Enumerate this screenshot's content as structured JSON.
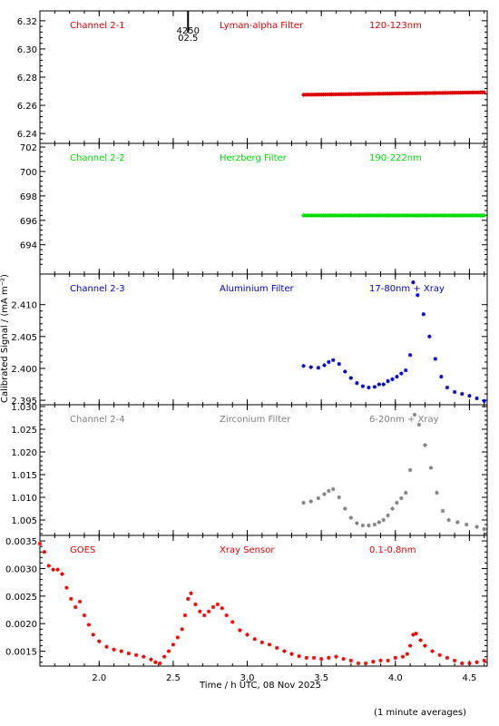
{
  "footer_note": "(1 minute averages)",
  "chart_data": [
    {
      "type": "scatter",
      "panel": "Channel 2-1",
      "labels": [
        "Channel 2-1",
        "Lyman-alpha Filter",
        "120-123nm"
      ],
      "color": "#dd0000",
      "ylim": [
        6.233,
        6.327
      ],
      "yticks": [
        "6.24",
        "6.26",
        "6.28",
        "6.30",
        "6.32"
      ],
      "ytick_values": [
        6.24,
        6.26,
        6.28,
        6.3,
        6.32
      ],
      "marker_label": [
        "4250",
        "02.5"
      ],
      "marker_x": 2.6,
      "series_x": [
        3.38,
        4.6
      ],
      "series_y": [
        6.2675,
        6.2692
      ]
    },
    {
      "type": "scatter",
      "panel": "Channel 2-2",
      "labels": [
        "Channel 2-2",
        "Herzberg Filter",
        "190-222nm"
      ],
      "color": "#00dd00",
      "ylim": [
        691.6,
        702.3
      ],
      "yticks": [
        "694",
        "696",
        "698",
        "700",
        "702"
      ],
      "ytick_values": [
        694,
        696,
        698,
        700,
        702
      ],
      "series_x": [
        3.38,
        4.6
      ],
      "series_y": [
        696.4,
        696.4
      ]
    },
    {
      "type": "scatter",
      "panel": "Channel 2-3",
      "labels": [
        "Channel 2-3",
        "Aluminium Filter",
        "17-80nm + Xray"
      ],
      "color": "#0000cc",
      "ylim": [
        2.3943,
        2.4148
      ],
      "yticks": [
        "2.395",
        "2.400",
        "2.405",
        "2.410"
      ],
      "ytick_values": [
        2.395,
        2.4,
        2.405,
        2.41
      ],
      "points": [
        [
          3.38,
          2.4004
        ],
        [
          3.43,
          2.4002
        ],
        [
          3.48,
          2.4001
        ],
        [
          3.52,
          2.4005
        ],
        [
          3.55,
          2.401
        ],
        [
          3.58,
          2.4013
        ],
        [
          3.62,
          2.4007
        ],
        [
          3.66,
          2.3995
        ],
        [
          3.7,
          2.3985
        ],
        [
          3.74,
          2.3977
        ],
        [
          3.78,
          2.3972
        ],
        [
          3.82,
          2.397
        ],
        [
          3.86,
          2.3971
        ],
        [
          3.89,
          2.3975
        ],
        [
          3.92,
          2.3975
        ],
        [
          3.95,
          2.398
        ],
        [
          3.98,
          2.3983
        ],
        [
          4.01,
          2.3987
        ],
        [
          4.04,
          2.3992
        ],
        [
          4.07,
          2.3997
        ],
        [
          4.1,
          2.4021
        ],
        [
          4.12,
          2.4135
        ],
        [
          4.15,
          2.4115
        ],
        [
          4.19,
          2.4085
        ],
        [
          4.23,
          2.405
        ],
        [
          4.27,
          2.4015
        ],
        [
          4.31,
          2.3987
        ],
        [
          4.35,
          2.397
        ],
        [
          4.4,
          2.3963
        ],
        [
          4.45,
          2.396
        ],
        [
          4.5,
          2.3957
        ],
        [
          4.55,
          2.3953
        ],
        [
          4.6,
          2.3949
        ]
      ]
    },
    {
      "type": "scatter",
      "panel": "Channel 2-4",
      "labels": [
        "Channel 2-4",
        "Zirconium Filter",
        "6-20nm + Xray"
      ],
      "color": "#808080",
      "ylim": [
        1.0016,
        1.0304
      ],
      "yticks": [
        "1.005",
        "1.010",
        "1.015",
        "1.020",
        "1.025",
        "1.030"
      ],
      "ytick_values": [
        1.005,
        1.01,
        1.015,
        1.02,
        1.025,
        1.03
      ],
      "points": [
        [
          3.38,
          1.0088
        ],
        [
          3.43,
          1.0091
        ],
        [
          3.48,
          1.0098
        ],
        [
          3.52,
          1.0107
        ],
        [
          3.55,
          1.0114
        ],
        [
          3.58,
          1.0118
        ],
        [
          3.62,
          1.01
        ],
        [
          3.66,
          1.0075
        ],
        [
          3.7,
          1.0055
        ],
        [
          3.74,
          1.0043
        ],
        [
          3.78,
          1.0038
        ],
        [
          3.82,
          1.0038
        ],
        [
          3.86,
          1.004
        ],
        [
          3.89,
          1.0045
        ],
        [
          3.92,
          1.005
        ],
        [
          3.95,
          1.006
        ],
        [
          3.98,
          1.0075
        ],
        [
          4.01,
          1.0088
        ],
        [
          4.04,
          1.0098
        ],
        [
          4.07,
          1.011
        ],
        [
          4.1,
          1.016
        ],
        [
          4.13,
          1.0282
        ],
        [
          4.16,
          1.026
        ],
        [
          4.2,
          1.0215
        ],
        [
          4.24,
          1.0165
        ],
        [
          4.28,
          1.011
        ],
        [
          4.32,
          1.007
        ],
        [
          4.36,
          1.005
        ],
        [
          4.42,
          1.0045
        ],
        [
          4.48,
          1.004
        ],
        [
          4.55,
          1.0035
        ],
        [
          4.6,
          1.003
        ]
      ]
    },
    {
      "type": "scatter",
      "panel": "GOES",
      "labels": [
        "GOES",
        "Xray Sensor",
        "0.1-0.8nm"
      ],
      "color": "#ee0000",
      "ylim": [
        0.00123,
        0.0036
      ],
      "yticks": [
        "0.0015",
        "0.0020",
        "0.0025",
        "0.0030",
        "0.0035"
      ],
      "ytick_values": [
        0.0015,
        0.002,
        0.0025,
        0.003,
        0.0035
      ],
      "xlim": [
        1.6,
        4.62
      ],
      "xticks": [
        "2.0",
        "2.5",
        "3.0",
        "3.5",
        "4.0",
        "4.5"
      ],
      "xtick_values": [
        2.0,
        2.5,
        3.0,
        3.5,
        4.0,
        4.5
      ],
      "points": [
        [
          1.6,
          0.00345
        ],
        [
          1.63,
          0.0033
        ],
        [
          1.66,
          0.00305
        ],
        [
          1.69,
          0.00298
        ],
        [
          1.72,
          0.00298
        ],
        [
          1.75,
          0.0029
        ],
        [
          1.78,
          0.00265
        ],
        [
          1.81,
          0.00245
        ],
        [
          1.84,
          0.0023
        ],
        [
          1.87,
          0.0024
        ],
        [
          1.9,
          0.00215
        ],
        [
          1.93,
          0.00198
        ],
        [
          1.96,
          0.0018
        ],
        [
          2.0,
          0.00168
        ],
        [
          2.05,
          0.00158
        ],
        [
          2.1,
          0.00153
        ],
        [
          2.15,
          0.0015
        ],
        [
          2.2,
          0.00146
        ],
        [
          2.25,
          0.00143
        ],
        [
          2.3,
          0.0014
        ],
        [
          2.35,
          0.00135
        ],
        [
          2.38,
          0.0013
        ],
        [
          2.41,
          0.00128
        ],
        [
          2.44,
          0.0014
        ],
        [
          2.47,
          0.0015
        ],
        [
          2.5,
          0.00162
        ],
        [
          2.53,
          0.00175
        ],
        [
          2.56,
          0.0019
        ],
        [
          2.58,
          0.00215
        ],
        [
          2.6,
          0.00245
        ],
        [
          2.62,
          0.00255
        ],
        [
          2.65,
          0.00235
        ],
        [
          2.68,
          0.00222
        ],
        [
          2.71,
          0.00215
        ],
        [
          2.74,
          0.00222
        ],
        [
          2.77,
          0.0023
        ],
        [
          2.8,
          0.00235
        ],
        [
          2.83,
          0.00228
        ],
        [
          2.86,
          0.00215
        ],
        [
          2.9,
          0.00203
        ],
        [
          2.95,
          0.00188
        ],
        [
          3.0,
          0.0018
        ],
        [
          3.05,
          0.00172
        ],
        [
          3.1,
          0.00166
        ],
        [
          3.15,
          0.00162
        ],
        [
          3.2,
          0.00156
        ],
        [
          3.25,
          0.0015
        ],
        [
          3.3,
          0.00145
        ],
        [
          3.35,
          0.00141
        ],
        [
          3.4,
          0.00138
        ],
        [
          3.45,
          0.00138
        ],
        [
          3.5,
          0.00136
        ],
        [
          3.55,
          0.00138
        ],
        [
          3.6,
          0.0014
        ],
        [
          3.65,
          0.00136
        ],
        [
          3.7,
          0.00133
        ],
        [
          3.75,
          0.00128
        ],
        [
          3.8,
          0.00128
        ],
        [
          3.85,
          0.00131
        ],
        [
          3.9,
          0.00133
        ],
        [
          3.95,
          0.00133
        ],
        [
          4.0,
          0.00138
        ],
        [
          4.05,
          0.0014
        ],
        [
          4.08,
          0.00145
        ],
        [
          4.1,
          0.0016
        ],
        [
          4.12,
          0.0018
        ],
        [
          4.14,
          0.00182
        ],
        [
          4.17,
          0.0017
        ],
        [
          4.2,
          0.0016
        ],
        [
          4.25,
          0.0015
        ],
        [
          4.3,
          0.00143
        ],
        [
          4.35,
          0.00138
        ],
        [
          4.4,
          0.00133
        ],
        [
          4.45,
          0.00128
        ],
        [
          4.5,
          0.00128
        ],
        [
          4.55,
          0.0013
        ],
        [
          4.6,
          0.00133
        ]
      ]
    }
  ],
  "xlabel": "Time / h UTC, 08 Nov 2025",
  "ylabel": "Calibrated Signal / (mA m⁻²)"
}
